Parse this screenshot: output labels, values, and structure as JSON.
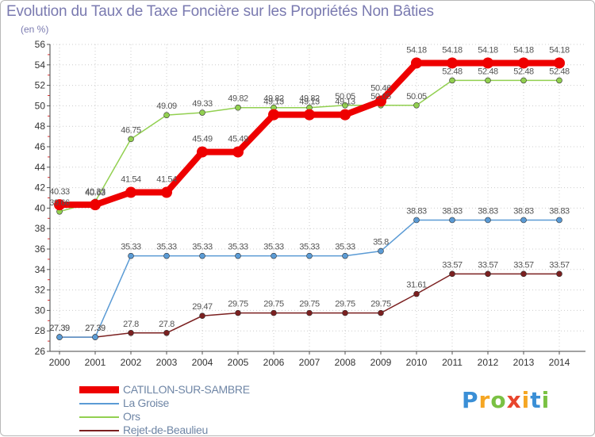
{
  "chart_data": {
    "type": "line",
    "title": "Evolution du Taux de Taxe Foncière sur les Propriétés Non Bâties",
    "ylabel": "(en %)",
    "xlabel": "",
    "ylim": [
      26,
      56
    ],
    "ytick_step": 2,
    "x": [
      "2000",
      "2001",
      "2002",
      "2003",
      "2004",
      "2005",
      "2006",
      "2007",
      "2008",
      "2009",
      "2010",
      "2011",
      "2012",
      "2013",
      "2014"
    ],
    "series": [
      {
        "name": "CATILLON-SUR-SAMBRE",
        "color": "#ee0000",
        "values": [
          40.33,
          40.33,
          41.54,
          41.54,
          45.49,
          45.49,
          49.13,
          49.13,
          49.13,
          50.46,
          54.18,
          54.18,
          54.18,
          54.18,
          54.18
        ],
        "labels": [
          "40.33",
          "40.33",
          "41.54",
          "41.54",
          "45.49",
          "45.49",
          "49.13",
          "49.13",
          "49.13",
          "50.46",
          "54.18",
          "54.18",
          "54.18",
          "54.18",
          "54.18"
        ]
      },
      {
        "name": "La Groise",
        "color": "#5b9bd5",
        "values": [
          27.39,
          27.39,
          35.33,
          35.33,
          35.33,
          35.33,
          35.33,
          35.33,
          35.33,
          35.8,
          38.83,
          38.83,
          38.83,
          38.83,
          38.83
        ],
        "labels": [
          "27.39",
          "27.39",
          "35.33",
          "35.33",
          "35.33",
          "35.33",
          "35.33",
          "35.33",
          "35.33",
          "35.8",
          "38.83",
          "38.83",
          "38.83",
          "38.83",
          "38.83"
        ]
      },
      {
        "name": "Ors",
        "color": "#92d050",
        "values": [
          39.66,
          40.63,
          46.75,
          49.09,
          49.33,
          49.82,
          49.82,
          49.82,
          50.05,
          50.05,
          50.05,
          52.48,
          52.48,
          52.48,
          52.48
        ],
        "labels": [
          "39.66",
          "40.63",
          "46.75",
          "49.09",
          "49.33",
          "49.82",
          "49.82",
          "49.82",
          "50.05",
          "50.05",
          "50.05",
          "52.48",
          "52.48",
          "52.48",
          "52.48"
        ]
      },
      {
        "name": "Rejet-de-Beaulieu",
        "color": "#7b2020",
        "values": [
          27.39,
          27.39,
          27.8,
          27.8,
          29.47,
          29.75,
          29.75,
          29.75,
          29.75,
          29.75,
          31.61,
          33.57,
          33.57,
          33.57,
          33.57
        ],
        "labels": [
          "27.39",
          "27.39",
          "27.8",
          "27.8",
          "29.47",
          "29.75",
          "29.75",
          "29.75",
          "29.75",
          "29.75",
          "31.61",
          "33.57",
          "33.57",
          "33.57",
          "33.57"
        ]
      }
    ]
  },
  "logo": {
    "letters": [
      "P",
      "r",
      "o",
      "x",
      "i",
      "t",
      "i"
    ],
    "colors": [
      "#3a8fd6",
      "#f5a623",
      "#7ac143",
      "#e8452c",
      "#f5a623",
      "#3a8fd6",
      "#7ac143"
    ]
  }
}
